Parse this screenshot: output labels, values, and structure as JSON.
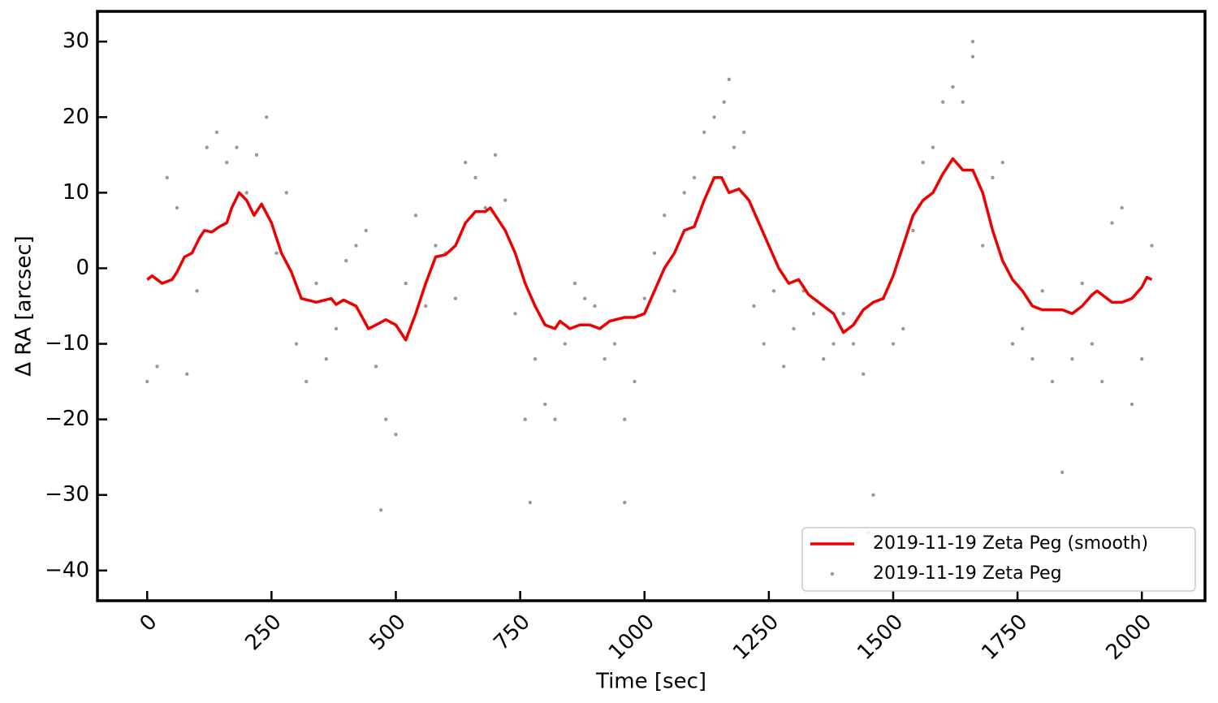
{
  "chart_data": {
    "type": "line",
    "xlabel": "Time [sec]",
    "ylabel": "Δ RA [arcsec]",
    "xlim": [
      -100,
      2127
    ],
    "ylim": [
      -44,
      34
    ],
    "xticks": [
      0,
      250,
      500,
      750,
      1000,
      1250,
      1500,
      1750,
      2000
    ],
    "yticks": [
      {
        "value": -40,
        "label": "−40"
      },
      {
        "value": -30,
        "label": "−30"
      },
      {
        "value": -20,
        "label": "−20"
      },
      {
        "value": -10,
        "label": "−10"
      },
      0,
      10,
      20,
      30
    ],
    "legend": "lower right",
    "series": [
      {
        "name": "2019-11-19 Zeta Peg (smooth)",
        "type": "line",
        "color": "#ee0000",
        "x": [
          0,
          10,
          20,
          30,
          50,
          60,
          75,
          90,
          105,
          115,
          130,
          145,
          160,
          170,
          185,
          200,
          215,
          230,
          250,
          270,
          290,
          310,
          340,
          370,
          380,
          395,
          420,
          445,
          460,
          480,
          500,
          520,
          540,
          560,
          580,
          600,
          620,
          640,
          660,
          680,
          690,
          700,
          720,
          740,
          760,
          780,
          800,
          820,
          830,
          850,
          870,
          890,
          910,
          930,
          960,
          980,
          1000,
          1020,
          1040,
          1060,
          1080,
          1100,
          1120,
          1140,
          1155,
          1170,
          1190,
          1210,
          1230,
          1250,
          1270,
          1290,
          1310,
          1330,
          1360,
          1380,
          1400,
          1420,
          1440,
          1460,
          1480,
          1500,
          1520,
          1540,
          1560,
          1580,
          1600,
          1620,
          1640,
          1660,
          1680,
          1700,
          1720,
          1740,
          1760,
          1780,
          1800,
          1820,
          1840,
          1860,
          1880,
          1900,
          1910,
          1920,
          1940,
          1960,
          1980,
          2000,
          2010,
          2020
        ],
        "values": [
          -1.5,
          -1,
          -1.5,
          -2,
          -1.5,
          -0.5,
          1.5,
          2,
          4,
          5,
          4.8,
          5.5,
          6,
          8,
          10,
          9,
          7,
          8.5,
          6,
          2,
          -0.5,
          -4,
          -4.5,
          -4,
          -4.8,
          -4.2,
          -5,
          -8,
          -7.5,
          -6.8,
          -7.5,
          -9.5,
          -6,
          -2,
          1.5,
          1.8,
          3,
          6,
          7.5,
          7.5,
          8,
          7,
          5,
          2,
          -2,
          -5,
          -7.5,
          -8,
          -7,
          -8,
          -7.5,
          -7.5,
          -8,
          -7,
          -6.5,
          -6.5,
          -6,
          -3,
          0,
          2,
          5,
          5.5,
          9,
          12,
          12,
          10,
          10.5,
          9,
          6,
          3,
          0,
          -2,
          -1.5,
          -3.5,
          -5,
          -6,
          -8.5,
          -7.5,
          -5.5,
          -4.5,
          -4,
          -1,
          3,
          7,
          9,
          10,
          12.5,
          14.5,
          13,
          13,
          10,
          5,
          1,
          -1.5,
          -3,
          -5,
          -5.5,
          -5.5,
          -5.5,
          -6,
          -5,
          -3.5,
          -3,
          -3.5,
          -4.5,
          -4.5,
          -4,
          -2.5,
          -1.2,
          -1.5
        ]
      },
      {
        "name": "2019-11-19 Zeta Peg",
        "type": "scatter",
        "color": "#000000",
        "opacity": 0.4,
        "x": [
          0,
          20,
          40,
          60,
          80,
          100,
          120,
          140,
          160,
          180,
          200,
          220,
          240,
          260,
          280,
          300,
          320,
          340,
          360,
          380,
          400,
          420,
          440,
          460,
          480,
          500,
          520,
          540,
          560,
          580,
          600,
          620,
          640,
          660,
          680,
          700,
          720,
          740,
          760,
          780,
          800,
          820,
          840,
          860,
          880,
          900,
          920,
          940,
          960,
          980,
          1000,
          1020,
          1040,
          1060,
          1080,
          1100,
          1120,
          1140,
          1160,
          1180,
          1200,
          1220,
          1240,
          1260,
          1280,
          1300,
          1320,
          1340,
          1360,
          1380,
          1400,
          1420,
          1440,
          1460,
          1480,
          1500,
          1520,
          1540,
          1560,
          1580,
          1600,
          1620,
          1640,
          1660,
          1680,
          1700,
          1720,
          1740,
          1760,
          1780,
          1800,
          1820,
          1840,
          1860,
          1880,
          1900,
          1920,
          1940,
          1960,
          1980,
          2000,
          2020,
          470,
          770,
          960,
          1170,
          1660,
          1450
        ],
        "values": [
          -15,
          -13,
          12,
          8,
          -14,
          -3,
          16,
          18,
          14,
          16,
          10,
          15,
          20,
          2,
          10,
          -10,
          -15,
          -2,
          -12,
          -8,
          1,
          3,
          5,
          -13,
          -20,
          -22,
          -2,
          7,
          -5,
          3,
          2,
          -4,
          14,
          12,
          8,
          15,
          9,
          -6,
          -20,
          -12,
          -18,
          -20,
          -10,
          -2,
          -4,
          -5,
          -12,
          -10,
          -20,
          -15,
          -4,
          2,
          7,
          -3,
          10,
          12,
          18,
          20,
          22,
          16,
          18,
          -5,
          -10,
          -3,
          -13,
          -8,
          -3,
          -6,
          -12,
          -10,
          -6,
          -10,
          -14,
          -30,
          -4,
          -10,
          -8,
          5,
          14,
          16,
          22,
          24,
          22,
          28,
          3,
          12,
          14,
          -10,
          -8,
          -12,
          -3,
          -15,
          -27,
          -12,
          -2,
          -10,
          -15,
          6,
          8,
          -18,
          -12,
          3,
          -32,
          -31,
          -31,
          25,
          30,
          -35
        ]
      }
    ]
  }
}
